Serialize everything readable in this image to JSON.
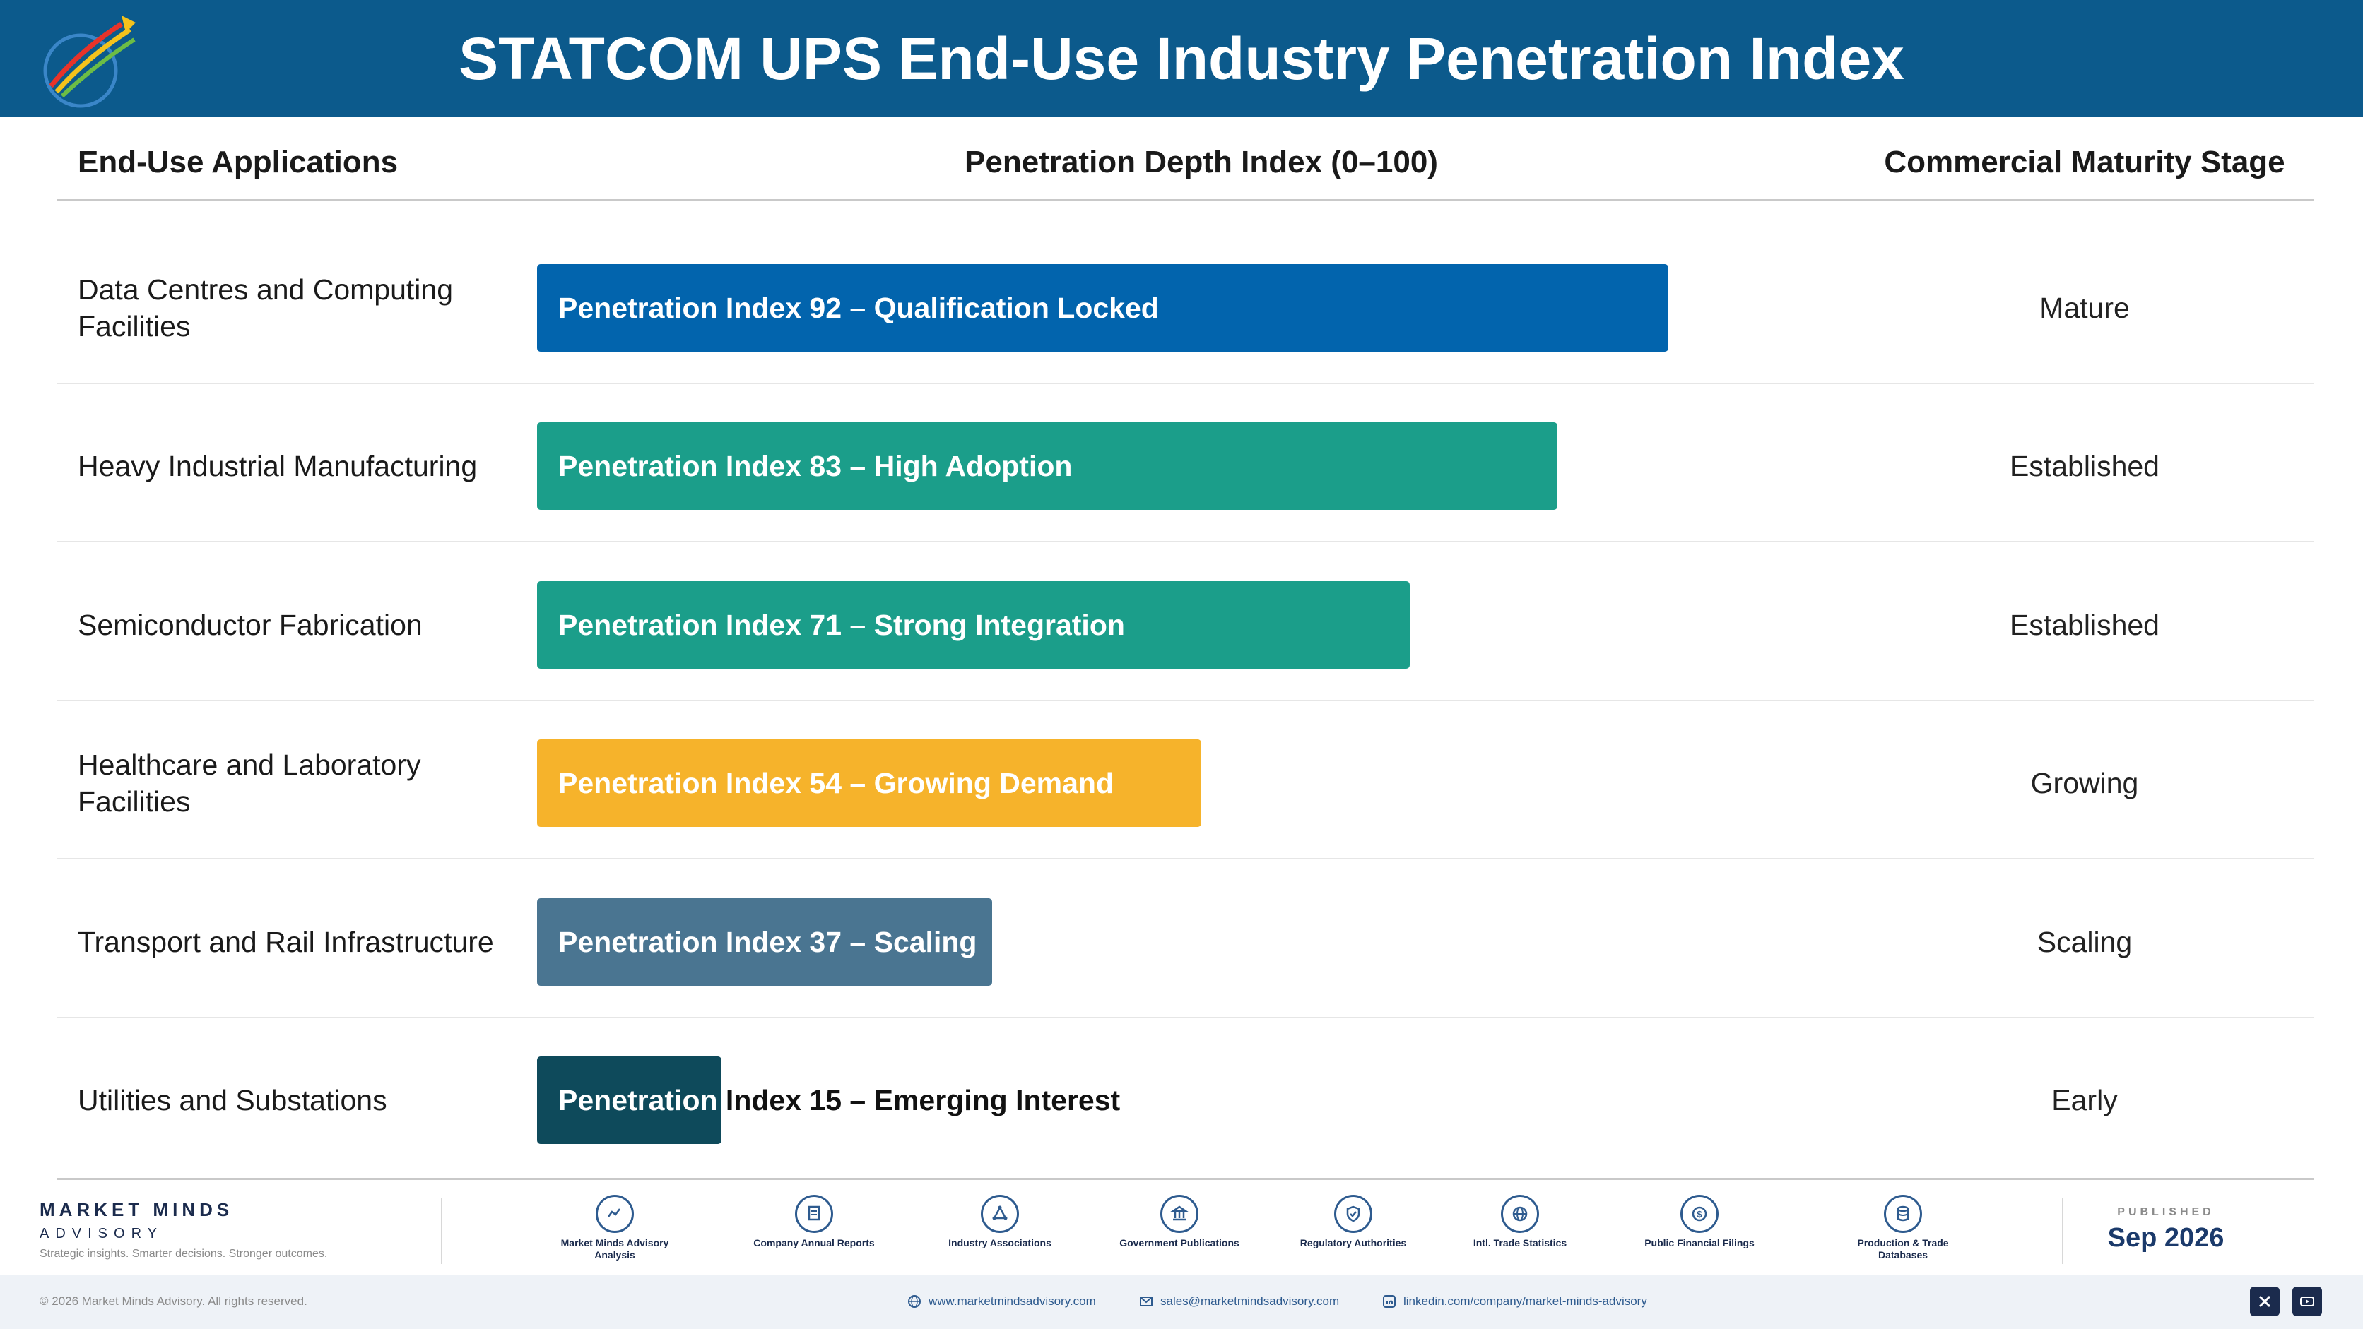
{
  "header": {
    "title": "STATCOM UPS End-Use Industry Penetration Index"
  },
  "columns": {
    "applications": "End-Use Applications",
    "index": "Penetration Depth Index (0–100)",
    "stage": "Commercial Maturity Stage"
  },
  "chart_data": {
    "type": "bar",
    "orientation": "horizontal",
    "xlim": [
      0,
      100
    ],
    "categories": [
      "Data Centres and Computing Facilities",
      "Heavy Industrial Manufacturing",
      "Semiconductor Fabrication",
      "Healthcare and Laboratory Facilities",
      "Transport and Rail Infrastructure",
      "Utilities and Substations"
    ],
    "values": [
      92,
      83,
      71,
      54,
      37,
      15
    ],
    "bar_labels": [
      "Penetration Index 92 – Qualification Locked",
      "Penetration Index 83 – High Adoption",
      "Penetration Index 71 – Strong Integration",
      "Penetration Index 54 – Growing Demand",
      "Penetration Index 37 – Scaling",
      "Penetration Index 15 – Emerging Interest"
    ],
    "stages": [
      "Mature",
      "Established",
      "Established",
      "Growing",
      "Scaling",
      "Early"
    ],
    "colors": [
      "#0264ad",
      "#1b9e8a",
      "#1b9e8a",
      "#f6b32b",
      "#4a7591",
      "#0e4a5b"
    ]
  },
  "footer": {
    "brand_name": "MARKET MINDS",
    "brand_sub": "ADVISORY",
    "tagline": "Strategic insights. Smarter decisions. Stronger outcomes.",
    "sources": [
      {
        "label": "Market Minds Advisory Analysis",
        "icon": "chart-line-icon"
      },
      {
        "label": "Company Annual Reports",
        "icon": "document-icon"
      },
      {
        "label": "Industry Associations",
        "icon": "network-icon"
      },
      {
        "label": "Government Publications",
        "icon": "government-building-icon"
      },
      {
        "label": "Regulatory Authorities",
        "icon": "shield-check-icon"
      },
      {
        "label": "Intl. Trade Statistics",
        "icon": "globe-icon"
      },
      {
        "label": "Public Financial Filings",
        "icon": "dollar-coin-icon"
      },
      {
        "label": "Production & Trade Databases",
        "icon": "database-icon"
      }
    ],
    "published_label": "PUBLISHED",
    "published_date": "Sep 2026",
    "copyright": "© 2026 Market Minds Advisory. All rights reserved.",
    "website": "www.marketmindsadvisory.com",
    "email": "sales@marketmindsadvisory.com",
    "linkedin": "linkedin.com/company/market-minds-advisory"
  }
}
